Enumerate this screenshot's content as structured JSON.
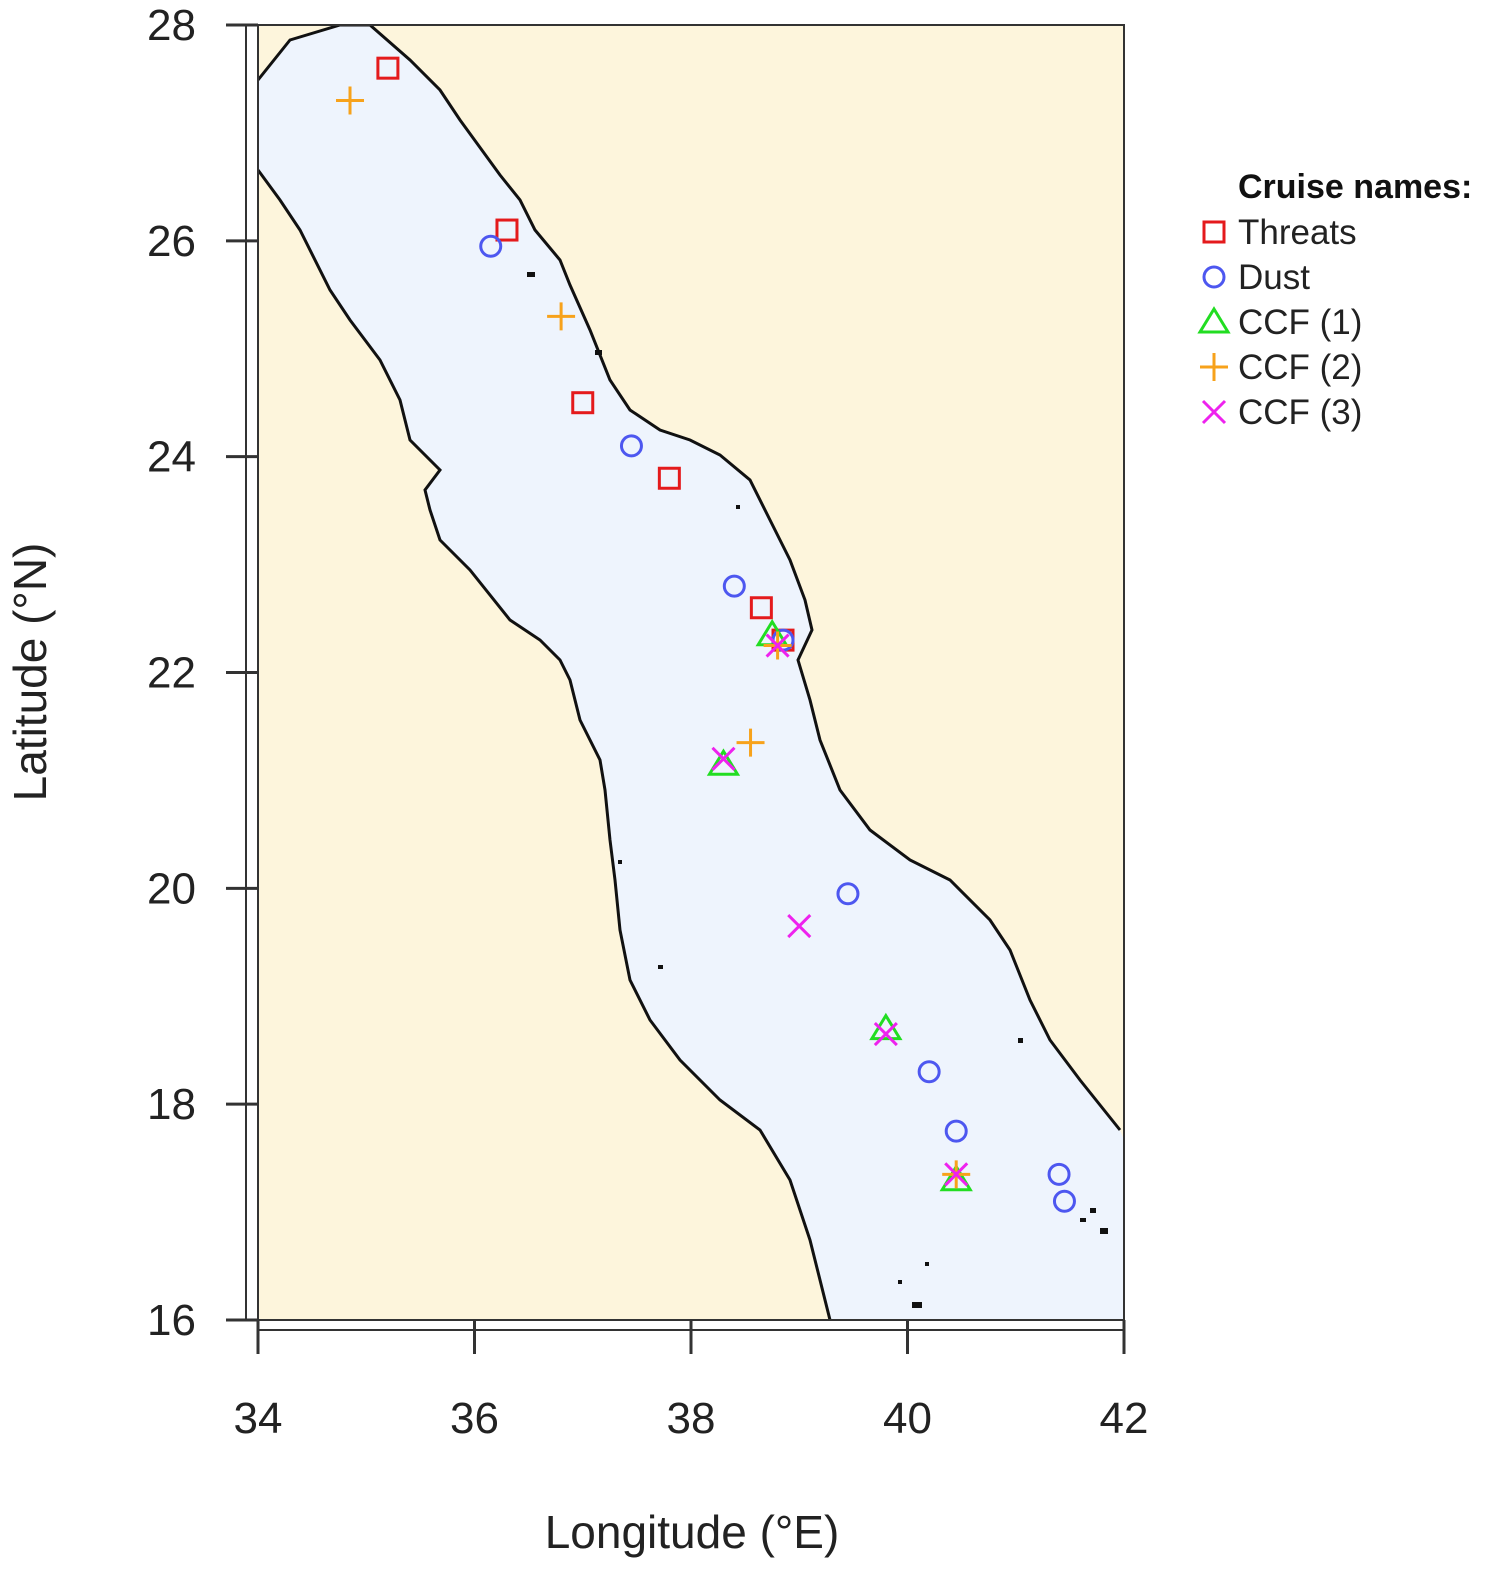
{
  "chart_data": {
    "type": "scatter",
    "xlabel": "Longitude (°E)",
    "ylabel": "Latitude (°N)",
    "xlim": [
      34,
      42
    ],
    "ylim": [
      16,
      28
    ],
    "x_ticks": [
      34,
      36,
      38,
      40,
      42
    ],
    "y_ticks": [
      16,
      18,
      20,
      22,
      24,
      26,
      28
    ],
    "colors": {
      "sea": "#eef4fd",
      "land": "#fdf5dc",
      "coast": "#111111"
    },
    "legend": {
      "title": "Cruise names:",
      "placement": "right"
    },
    "series": [
      {
        "name": "Threats",
        "marker": "square",
        "color": "#e41a1c",
        "points": [
          [
            35.2,
            27.6
          ],
          [
            36.3,
            26.1
          ],
          [
            37.0,
            24.5
          ],
          [
            37.8,
            23.8
          ],
          [
            38.65,
            22.6
          ],
          [
            38.85,
            22.3
          ]
        ]
      },
      {
        "name": "Dust",
        "marker": "circle",
        "color": "#4d57f0",
        "points": [
          [
            36.15,
            25.95
          ],
          [
            37.45,
            24.1
          ],
          [
            38.4,
            22.8
          ],
          [
            38.85,
            22.3
          ],
          [
            39.45,
            19.95
          ],
          [
            40.2,
            18.3
          ],
          [
            40.45,
            17.75
          ],
          [
            41.4,
            17.35
          ],
          [
            41.45,
            17.1
          ]
        ]
      },
      {
        "name": "CCF (1)",
        "marker": "triangle",
        "color": "#22dd22",
        "points": [
          [
            38.75,
            22.35
          ],
          [
            38.3,
            21.15
          ],
          [
            39.8,
            18.7
          ],
          [
            40.45,
            17.3
          ]
        ]
      },
      {
        "name": "CCF (2)",
        "marker": "plus",
        "color": "#f7a21b",
        "points": [
          [
            34.85,
            27.3
          ],
          [
            36.8,
            25.3
          ],
          [
            38.8,
            22.25
          ],
          [
            38.55,
            21.35
          ],
          [
            40.45,
            17.35
          ]
        ]
      },
      {
        "name": "CCF (3)",
        "marker": "cross",
        "color": "#ee22ee",
        "points": [
          [
            38.8,
            22.25
          ],
          [
            38.3,
            21.2
          ],
          [
            39.0,
            19.65
          ],
          [
            39.8,
            18.65
          ],
          [
            40.45,
            17.35
          ]
        ]
      }
    ]
  }
}
